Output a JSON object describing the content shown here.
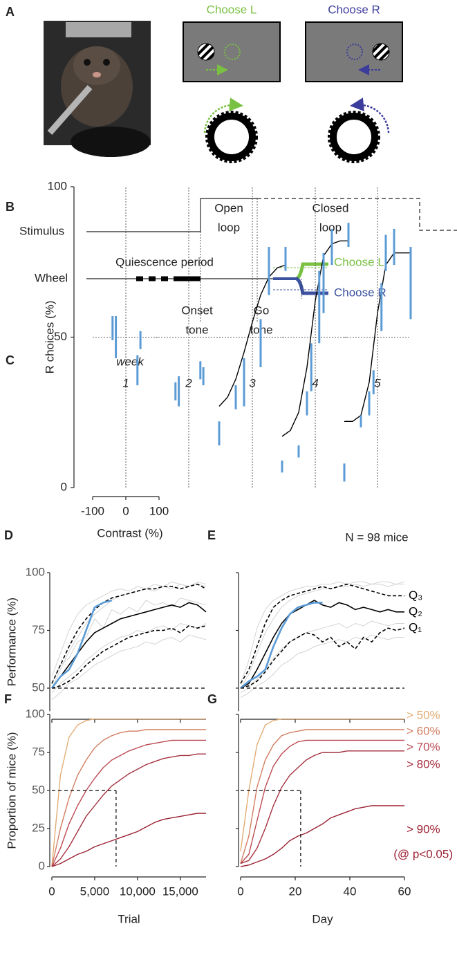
{
  "figure": {
    "panel_labels": [
      "A",
      "B",
      "C",
      "D",
      "E",
      "F",
      "G"
    ],
    "a": {
      "choose_l": "Choose L",
      "choose_r": "Choose R"
    },
    "b": {
      "stimulus": "Stimulus",
      "wheel": "Wheel",
      "quiescence": "Quiescence period",
      "open_loop": [
        "Open",
        "loop"
      ],
      "closed_loop": [
        "Closed",
        "loop"
      ],
      "choose_l": "Choose L",
      "choose_r": "Choose R",
      "onset_tone": [
        "Onset",
        "tone"
      ],
      "go_tone": [
        "Go",
        "tone"
      ]
    }
  },
  "chart_data": [
    {
      "type": "errorbar",
      "title": "week",
      "ylabel": "R choices (%)",
      "xlabel": "Contrast (%)",
      "xlim": [
        -100,
        100
      ],
      "ylim": [
        0,
        100
      ],
      "yticks": [
        0,
        50,
        100
      ],
      "xticks": [
        -100,
        0,
        100
      ],
      "reference_x": 0,
      "reference_y": 50,
      "color": "#5b9bd5",
      "fit_color": "#000000",
      "weeks": [
        {
          "label": "1",
          "x": [
            -40,
            -30,
            35,
            44
          ],
          "values": [
            53,
            50,
            39,
            49
          ],
          "errors": [
            4,
            7,
            5,
            3
          ]
        },
        {
          "label": "2",
          "x": [
            -40,
            -30,
            35,
            44
          ],
          "values": [
            32,
            32,
            39,
            37
          ],
          "errors": [
            3,
            5,
            3,
            3
          ]
        },
        {
          "label": "3",
          "x": [
            -100,
            -50,
            -25,
            25,
            50,
            100
          ],
          "values": [
            18,
            30,
            35,
            48,
            72,
            76
          ],
          "errors": [
            4,
            4,
            8,
            8,
            8,
            4
          ],
          "fit_x": [
            -100,
            -75,
            -50,
            -25,
            0,
            25,
            50,
            75,
            100
          ],
          "fit_y": [
            27,
            30,
            36,
            45,
            55,
            64,
            70,
            73,
            74
          ]
        },
        {
          "label": "4",
          "x": [
            -100,
            -50,
            -25,
            -12,
            12,
            25,
            50,
            100
          ],
          "values": [
            7,
            12,
            28,
            40,
            60,
            68,
            80,
            84
          ],
          "errors": [
            2,
            2,
            4,
            8,
            12,
            10,
            6,
            4
          ],
          "fit_x": [
            -100,
            -75,
            -50,
            -25,
            0,
            25,
            50,
            75,
            100
          ],
          "fit_y": [
            17,
            19,
            25,
            40,
            62,
            77,
            81,
            82,
            82
          ]
        },
        {
          "label": "5",
          "x": [
            -100,
            -50,
            -25,
            -12,
            12,
            25,
            50,
            100
          ],
          "values": [
            5,
            22,
            28,
            35,
            60,
            78,
            80,
            68
          ],
          "errors": [
            3,
            2,
            4,
            4,
            8,
            6,
            6,
            12
          ],
          "fit_x": [
            -100,
            -75,
            -50,
            -25,
            0,
            25,
            50,
            75,
            100
          ],
          "fit_y": [
            22,
            22,
            24,
            35,
            58,
            74,
            78,
            78,
            78
          ]
        }
      ]
    },
    {
      "type": "line",
      "ylabel": "Performance (%)",
      "xlim": [
        0,
        18000
      ],
      "ylim": [
        40,
        100
      ],
      "yticks": [
        50,
        75,
        100
      ],
      "xticks": [
        0,
        5000,
        10000,
        15000
      ],
      "xtick_labels": false,
      "reference_y": 50,
      "x": [
        0,
        1000,
        2000,
        3000,
        4000,
        5000,
        6000,
        7000,
        8000,
        9000,
        10000,
        11000,
        12000,
        13000,
        14000,
        15000,
        16000,
        17000,
        18000
      ],
      "series": [
        {
          "color": "#d3d3d3",
          "width": 1,
          "values": [
            50,
            58,
            66,
            72,
            78,
            82,
            85,
            88,
            90,
            91,
            92,
            93,
            92,
            94,
            93,
            95,
            94,
            95,
            94
          ]
        },
        {
          "color": "#d3d3d3",
          "width": 1,
          "values": [
            48,
            52,
            55,
            58,
            62,
            65,
            68,
            70,
            72,
            73,
            75,
            74,
            76,
            77,
            75,
            78,
            77,
            76,
            78
          ]
        },
        {
          "color": "#d3d3d3",
          "width": 1,
          "values": [
            55,
            65,
            75,
            82,
            86,
            88,
            90,
            92,
            93,
            92,
            94,
            93,
            95,
            94,
            96,
            95,
            94,
            96,
            95
          ]
        },
        {
          "color": "#d3d3d3",
          "width": 1,
          "values": [
            45,
            48,
            52,
            54,
            57,
            60,
            62,
            64,
            66,
            67,
            68,
            70,
            69,
            71,
            72,
            70,
            73,
            72,
            71
          ]
        },
        {
          "color": "#d3d3d3",
          "width": 1,
          "values": [
            52,
            60,
            63,
            70,
            72,
            80,
            76,
            84,
            82,
            85,
            83,
            88,
            86,
            87,
            85,
            89,
            88,
            87,
            86
          ]
        },
        {
          "color": "#000000",
          "width": 1.6,
          "dash": true,
          "values": [
            52,
            60,
            68,
            75,
            80,
            84,
            87,
            89,
            90,
            91,
            92,
            93,
            93,
            94,
            94,
            93,
            94,
            95,
            93
          ]
        },
        {
          "color": "#000000",
          "width": 1.6,
          "values": [
            50,
            55,
            60,
            65,
            70,
            74,
            76,
            78,
            80,
            81,
            82,
            83,
            84,
            85,
            86,
            85,
            87,
            86,
            83
          ]
        },
        {
          "color": "#000000",
          "width": 1.6,
          "dash": true,
          "values": [
            50,
            51,
            53,
            56,
            60,
            63,
            66,
            68,
            70,
            72,
            73,
            74,
            75,
            75,
            76,
            74,
            77,
            76,
            77
          ]
        },
        {
          "color": "#5b9bd5",
          "width": 2.6,
          "values": [
            50,
            55,
            58,
            65,
            75,
            85,
            87,
            88,
            null,
            null,
            null,
            null,
            null,
            null,
            null,
            null,
            null,
            null,
            null
          ]
        }
      ]
    },
    {
      "type": "line",
      "annotation": "N = 98 mice",
      "xlim": [
        0,
        60
      ],
      "ylim": [
        40,
        100
      ],
      "yticks": [
        50,
        75,
        100
      ],
      "ytick_labels": false,
      "xticks": [
        0,
        20,
        40,
        60
      ],
      "xtick_labels": false,
      "reference_y": 50,
      "series_labels": true,
      "x": [
        0,
        3,
        6,
        9,
        12,
        15,
        18,
        21,
        24,
        27,
        30,
        33,
        36,
        39,
        42,
        45,
        48,
        51,
        54,
        57,
        60
      ],
      "series": [
        {
          "color": "#d3d3d3",
          "width": 1,
          "values": [
            50,
            56,
            65,
            74,
            80,
            85,
            88,
            90,
            91,
            92,
            93,
            93,
            94,
            94,
            95,
            94,
            95,
            95,
            94,
            95,
            95
          ]
        },
        {
          "color": "#d3d3d3",
          "width": 1,
          "values": [
            48,
            50,
            54,
            58,
            63,
            67,
            70,
            72,
            74,
            75,
            76,
            77,
            78,
            76,
            78,
            77,
            79,
            78,
            77,
            78,
            78
          ]
        },
        {
          "color": "#d3d3d3",
          "width": 1,
          "values": [
            52,
            62,
            76,
            84,
            88,
            90,
            92,
            93,
            94,
            94,
            95,
            95,
            96,
            95,
            96,
            96,
            95,
            96,
            96,
            95,
            96
          ]
        },
        {
          "color": "#d3d3d3",
          "width": 1,
          "values": [
            46,
            48,
            51,
            53,
            56,
            60,
            62,
            65,
            66,
            68,
            69,
            70,
            71,
            70,
            72,
            71,
            73,
            72,
            71,
            72,
            72
          ]
        },
        {
          "name": "Q₃",
          "color": "#000000",
          "width": 1.6,
          "dash": true,
          "values": [
            52,
            58,
            68,
            78,
            85,
            88,
            90,
            91,
            92,
            93,
            94,
            93,
            94,
            95,
            94,
            93,
            92,
            91,
            90,
            90,
            90
          ]
        },
        {
          "name": "Q₂",
          "color": "#000000",
          "width": 1.6,
          "values": [
            50,
            52,
            58,
            65,
            72,
            78,
            82,
            84,
            86,
            88,
            86,
            85,
            87,
            86,
            84,
            85,
            84,
            83,
            84,
            83,
            83
          ]
        },
        {
          "name": "Q₁",
          "color": "#000000",
          "width": 1.6,
          "dash": true,
          "values": [
            50,
            51,
            53,
            57,
            62,
            66,
            70,
            72,
            74,
            73,
            70,
            72,
            68,
            70,
            67,
            72,
            70,
            74,
            76,
            75,
            76
          ]
        },
        {
          "color": "#5b9bd5",
          "width": 2.6,
          "values": [
            50,
            53,
            55,
            58,
            68,
            76,
            82,
            85,
            86,
            87,
            87,
            null,
            null,
            null,
            null,
            null,
            null,
            null,
            null,
            null,
            null
          ]
        }
      ]
    },
    {
      "type": "line",
      "ylabel": "Proportion of mice (%)",
      "xlabel": "Trial",
      "xlim": [
        0,
        18000
      ],
      "ylim": [
        0,
        100
      ],
      "yticks": [
        0,
        25,
        50,
        75,
        100
      ],
      "xticks": [
        0,
        {
          "value": 5000,
          "label": "5,000"
        },
        {
          "value": 10000,
          "label": "10,000"
        },
        {
          "value": 15000,
          "label": "15,000"
        }
      ],
      "reference": {
        "x": 7500,
        "y": 50
      },
      "x": [
        0,
        1000,
        2000,
        3000,
        4000,
        5000,
        6000,
        7000,
        8000,
        9000,
        10000,
        11000,
        12000,
        13000,
        14000,
        15000,
        16000,
        17000,
        18000
      ],
      "series": [
        {
          "color": "#e3ac74",
          "width": 1.4,
          "values": [
            0,
            60,
            85,
            93,
            96,
            97,
            97,
            97,
            97,
            97,
            97,
            97,
            97,
            97,
            97,
            97,
            97,
            97,
            97
          ]
        },
        {
          "color": "#d27e62",
          "width": 1.4,
          "values": [
            0,
            25,
            45,
            60,
            70,
            78,
            83,
            86,
            88,
            89,
            89,
            90,
            90,
            90,
            90,
            90,
            90,
            90,
            90
          ]
        },
        {
          "color": "#bb4a52",
          "width": 1.4,
          "values": [
            0,
            12,
            28,
            40,
            50,
            58,
            65,
            70,
            73,
            76,
            78,
            80,
            81,
            82,
            83,
            83,
            83,
            83,
            83
          ]
        },
        {
          "color": "#a4303f",
          "width": 1.4,
          "values": [
            0,
            5,
            13,
            23,
            33,
            40,
            47,
            53,
            57,
            61,
            64,
            67,
            69,
            71,
            72,
            73,
            73,
            74,
            74
          ]
        },
        {
          "color": "#9b2133",
          "width": 1.4,
          "values": [
            0,
            2,
            5,
            8,
            10,
            13,
            15,
            17,
            19,
            21,
            23,
            26,
            29,
            31,
            32,
            33,
            34,
            35,
            35
          ]
        }
      ]
    },
    {
      "type": "line",
      "xlabel": "Day",
      "xlim": [
        0,
        60
      ],
      "ylim": [
        0,
        100
      ],
      "yticks": [
        0,
        25,
        50,
        75,
        100
      ],
      "ytick_labels": false,
      "xticks": [
        0,
        20,
        40,
        60
      ],
      "reference": {
        "x": 22,
        "y": 50
      },
      "legend": "right",
      "legend_note": "(@ p<0.05)",
      "x": [
        0,
        3,
        6,
        9,
        12,
        15,
        18,
        21,
        24,
        27,
        30,
        33,
        36,
        39,
        42,
        45,
        48,
        51,
        54,
        57,
        60
      ],
      "series": [
        {
          "name": "> 50%",
          "color": "#e3ac74",
          "width": 1.4,
          "values": [
            10,
            50,
            80,
            93,
            96,
            97,
            97,
            97,
            97,
            97,
            97,
            97,
            97,
            97,
            97,
            97,
            97,
            97,
            97,
            97,
            97
          ]
        },
        {
          "name": "> 60%",
          "color": "#d27e62",
          "width": 1.4,
          "values": [
            2,
            20,
            52,
            70,
            80,
            86,
            88,
            89,
            90,
            90,
            90,
            90,
            90,
            90,
            90,
            90,
            90,
            90,
            90,
            90,
            90
          ]
        },
        {
          "name": "> 70%",
          "color": "#bb4a52",
          "width": 1.4,
          "values": [
            2,
            8,
            30,
            52,
            66,
            74,
            79,
            82,
            83,
            83,
            83,
            83,
            83,
            83,
            83,
            83,
            83,
            83,
            83,
            83,
            83
          ]
        },
        {
          "name": "> 80%",
          "color": "#a4303f",
          "width": 1.4,
          "values": [
            2,
            4,
            12,
            25,
            40,
            52,
            60,
            65,
            70,
            73,
            75,
            75,
            75,
            76,
            76,
            76,
            76,
            76,
            76,
            76,
            76
          ]
        },
        {
          "name": "> 90%",
          "color": "#9b2133",
          "width": 1.4,
          "values": [
            0,
            1,
            3,
            5,
            8,
            12,
            17,
            20,
            22,
            25,
            28,
            32,
            34,
            36,
            38,
            39,
            40,
            40,
            40,
            40,
            40
          ]
        }
      ]
    }
  ]
}
